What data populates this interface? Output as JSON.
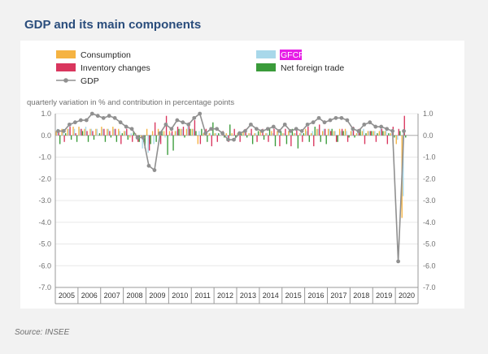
{
  "page": {
    "title": "GDP and its main components",
    "source": "Source: INSEE"
  },
  "chart_data": {
    "type": "bar+line",
    "subtitle": "quarterly variation in % and contribution in percentage points",
    "ylim": [
      -7.0,
      1.0
    ],
    "yticks": [
      "1.0",
      "0.0",
      "-1.0",
      "-2.0",
      "-3.0",
      "-4.0",
      "-5.0",
      "-6.0",
      "-7.0"
    ],
    "ytick_values": [
      1,
      0,
      -1,
      -2,
      -3,
      -4,
      -5,
      -6,
      -7
    ],
    "years": [
      "2005",
      "2006",
      "2007",
      "2008",
      "2009",
      "2010",
      "2011",
      "2012",
      "2013",
      "2014",
      "2015",
      "2016",
      "2017",
      "2018",
      "2019",
      "2020"
    ],
    "quarters_per_year": 4,
    "legend": [
      {
        "label": "Consumption",
        "color": "#f5b342",
        "kind": "box"
      },
      {
        "label": "GFCF",
        "color": "#a8d8ea",
        "kind": "box",
        "highlight": true
      },
      {
        "label": "Inventory changes",
        "color": "#d9365e",
        "kind": "box"
      },
      {
        "label": "Net foreign trade",
        "color": "#3a9b3a",
        "kind": "box"
      },
      {
        "label": "GDP",
        "color": "#909090",
        "kind": "line"
      }
    ],
    "series": [
      {
        "name": "Consumption",
        "color": "#f5b342",
        "values": [
          0.2,
          0.3,
          0.3,
          0.4,
          0.4,
          0.3,
          0.3,
          0.3,
          0.4,
          0.3,
          0.4,
          0.3,
          0.2,
          -0.1,
          0.1,
          -0.1,
          0.3,
          0.2,
          0.3,
          0.2,
          0.2,
          0.2,
          0.3,
          0.3,
          0.3,
          -0.4,
          0.1,
          0.1,
          0.1,
          0.0,
          0.1,
          0.1,
          0.1,
          0.2,
          0.1,
          0.1,
          0.2,
          0.1,
          0.2,
          0.2,
          0.1,
          0.2,
          0.1,
          0.1,
          0.3,
          0.1,
          0.3,
          0.2,
          0.3,
          0.2,
          0.3,
          0.3,
          0.2,
          0.1,
          0.2,
          0.2,
          0.2,
          0.2,
          0.2,
          0.1,
          -0.4,
          -3.8
        ]
      },
      {
        "name": "GFCF",
        "color": "#a8d8ea",
        "values": [
          0.3,
          0.3,
          0.3,
          0.3,
          0.3,
          0.4,
          0.3,
          0.3,
          0.3,
          0.3,
          0.3,
          0.2,
          0.2,
          0.1,
          -0.2,
          -0.6,
          -0.8,
          -0.4,
          -0.3,
          -0.1,
          0.1,
          0.2,
          0.3,
          0.4,
          0.3,
          0.2,
          0.2,
          0.1,
          0.1,
          0.0,
          -0.1,
          0.0,
          0.0,
          0.1,
          0.1,
          0.1,
          0.0,
          0.1,
          0.1,
          0.1,
          0.1,
          0.1,
          0.1,
          0.1,
          0.2,
          0.2,
          0.3,
          0.3,
          0.3,
          0.2,
          0.2,
          0.2,
          0.3,
          0.2,
          0.3,
          0.2,
          0.2,
          0.3,
          0.3,
          0.1,
          -0.2,
          -2.8
        ]
      },
      {
        "name": "Inventory changes",
        "color": "#d9365e",
        "values": [
          0.2,
          -0.3,
          0.4,
          0.1,
          0.3,
          0.2,
          0.2,
          0.0,
          0.3,
          0.2,
          0.3,
          -0.4,
          0.3,
          -0.3,
          -0.3,
          -0.3,
          -0.7,
          0.6,
          -0.4,
          0.9,
          0.2,
          0.4,
          0.4,
          0.6,
          0.7,
          -0.4,
          0.3,
          -0.5,
          -0.3,
          0.2,
          -0.3,
          0.3,
          -0.3,
          0.3,
          0.3,
          -0.3,
          0.3,
          -0.3,
          0.3,
          -0.5,
          0.3,
          -0.5,
          0.3,
          -0.3,
          0.4,
          -0.5,
          0.5,
          0.3,
          0.2,
          -0.3,
          0.3,
          -0.3,
          0.4,
          0.3,
          -0.4,
          0.2,
          -0.3,
          0.3,
          -0.4,
          0.4,
          0.3,
          0.9
        ]
      },
      {
        "name": "Net foreign trade",
        "color": "#3a9b3a",
        "values": [
          -0.4,
          0.1,
          -0.2,
          -0.3,
          0.2,
          -0.3,
          -0.2,
          0.1,
          -0.3,
          -0.1,
          -0.3,
          0.1,
          -0.2,
          0.2,
          -0.3,
          -0.6,
          -0.4,
          -0.3,
          0.2,
          -0.9,
          -0.7,
          0.3,
          -0.1,
          0.3,
          0.2,
          0.3,
          -0.3,
          0.6,
          0.1,
          -0.1,
          0.5,
          -0.1,
          0.1,
          -0.1,
          -0.4,
          0.2,
          -0.2,
          0.3,
          -0.5,
          0.2,
          -0.4,
          0.3,
          -0.6,
          0.1,
          -0.3,
          0.4,
          -0.3,
          -0.4,
          0.3,
          -0.3,
          0.2,
          -0.1,
          -0.1,
          0.3,
          0.1,
          0.2,
          0.1,
          0.2,
          0.1,
          -0.1,
          0.2,
          -0.1
        ]
      },
      {
        "name": "GDP",
        "color": "#909090",
        "values": [
          0.2,
          0.2,
          0.5,
          0.6,
          0.7,
          0.7,
          1.0,
          0.9,
          0.8,
          0.9,
          0.8,
          0.6,
          0.4,
          0.3,
          -0.1,
          -0.1,
          -1.4,
          -1.6,
          0.1,
          0.5,
          0.3,
          0.7,
          0.6,
          0.5,
          0.8,
          1.0,
          0.1,
          0.3,
          0.3,
          0.1,
          -0.2,
          -0.2,
          0.1,
          0.2,
          0.5,
          0.3,
          0.2,
          0.3,
          0.4,
          0.2,
          0.5,
          0.2,
          0.3,
          0.2,
          0.5,
          0.6,
          0.8,
          0.6,
          0.7,
          0.8,
          0.8,
          0.7,
          0.3,
          0.2,
          0.5,
          0.6,
          0.4,
          0.4,
          0.3,
          0.2,
          -5.8,
          0.2
        ]
      }
    ]
  }
}
